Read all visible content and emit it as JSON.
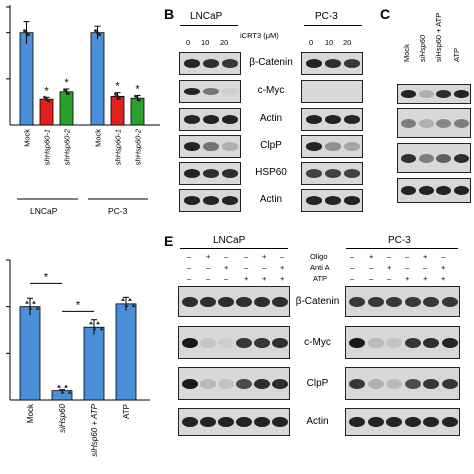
{
  "panels": {
    "B": {
      "letter": "B",
      "cell_lines": [
        "LNCaP",
        "PC-3"
      ],
      "treatment_label": "iCRT3 (μM)",
      "doses": [
        "0",
        "10",
        "20"
      ],
      "markers": [
        "β-Catenin",
        "c-Myc",
        "Actin",
        "ClpP",
        "HSP60",
        "Actin"
      ]
    },
    "C": {
      "letter": "C",
      "lanes": [
        "Mock",
        "siHsp60",
        "siHsp60 + ATP",
        "ATP"
      ]
    },
    "E": {
      "letter": "E",
      "cell_lines": [
        "LNCaP",
        "PC-3"
      ],
      "treatments": [
        "Oligo",
        "Anti A",
        "ATP"
      ],
      "signs": {
        "Oligo": [
          "–",
          "+",
          "–",
          "–",
          "+",
          "–"
        ],
        "Anti A": [
          "–",
          "–",
          "+",
          "–",
          "–",
          "+"
        ],
        "ATP": [
          "–",
          "–",
          "–",
          "+",
          "+",
          "+"
        ]
      },
      "markers": [
        "β-Catenin",
        "c-Myc",
        "ClpP",
        "Actin"
      ]
    }
  },
  "chart_data": [
    {
      "type": "bar",
      "categories": [
        "Mock",
        "shHsp60-1",
        "shHsp60-2",
        "Mock",
        "shHsp60-1",
        "shHsp60-2"
      ],
      "groups": [
        "LNCaP",
        "PC-3"
      ],
      "values": [
        1.0,
        0.28,
        0.36,
        1.0,
        0.31,
        0.29
      ],
      "errors": [
        0.12,
        0.02,
        0.03,
        0.07,
        0.04,
        0.03
      ],
      "bar_colors": [
        "#4a90d9",
        "#e32020",
        "#2ca02c",
        "#4a90d9",
        "#e32020",
        "#2ca02c"
      ],
      "significance": [
        "",
        "*",
        "*",
        "",
        "*",
        "*"
      ],
      "ylim": [
        0,
        1.3
      ]
    },
    {
      "type": "bar",
      "categories": [
        "Mock",
        "siHsp60",
        "siHsp60 + ATP",
        "ATP"
      ],
      "values": [
        1.0,
        0.1,
        0.78,
        1.03
      ],
      "errors": [
        0.09,
        0.01,
        0.08,
        0.07
      ],
      "bar_colors": [
        "#4a90d9",
        "#4a90d9",
        "#4a90d9",
        "#4a90d9"
      ],
      "brackets": [
        {
          "from": "Mock",
          "to": "siHsp60",
          "label": "*"
        },
        {
          "from": "siHsp60",
          "to": "siHsp60 + ATP",
          "label": "*"
        }
      ],
      "ylim": [
        0,
        1.5
      ]
    }
  ]
}
